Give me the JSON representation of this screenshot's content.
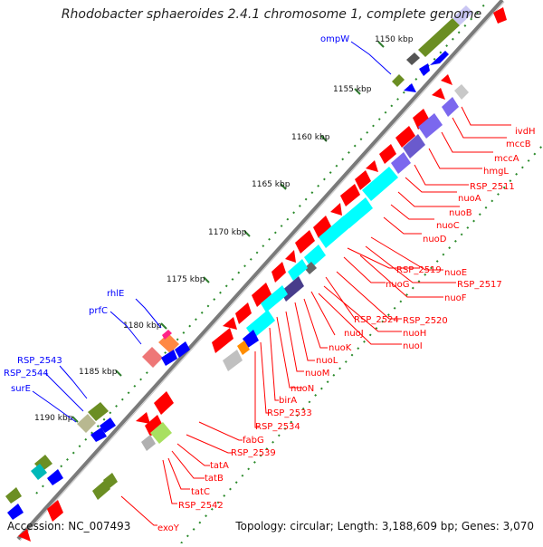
{
  "title": "Rhodobacter sphaeroides 2.4.1 chromosome 1, complete genome",
  "accession": "Accession: NC_007493",
  "summary": "Topology: circular; Length: 3,188,609 bp; Genes: 3,070",
  "ticks": [
    "1150 kbp",
    "1155 kbp",
    "1160 kbp",
    "1165 kbp",
    "1170 kbp",
    "1175 kbp",
    "1180 kbp",
    "1185 kbp",
    "1190 kbp"
  ],
  "labels_red": [
    "ivdH",
    "mccB",
    "mccA",
    "hmgL",
    "RSP_2511",
    "nuoA",
    "nuoB",
    "nuoC",
    "nuoD",
    "nuoE",
    "RSP_2517",
    "nuoF",
    "RSP_2519",
    "nuoG",
    "RSP_2520",
    "RSP_2524",
    "nuoH",
    "nuoI",
    "nuoJ",
    "nuoK",
    "nuoL",
    "nuoM",
    "nuoN",
    "birA",
    "RSP_2533",
    "RSP_2534",
    "fabG",
    "RSP_2539",
    "tatA",
    "tatB",
    "tatC",
    "RSP_2542",
    "exoY"
  ],
  "labels_blue": [
    "ompW",
    "rhlE",
    "prfC",
    "RSP_2543",
    "RSP_2544",
    "surE"
  ],
  "colors": {
    "red_gene": "#ff0000",
    "blue_gene": "#0000ff",
    "cyan": "#00ffff",
    "olive": "#6b8e23",
    "purple": "#7b68ee",
    "backbone": "#777777"
  }
}
